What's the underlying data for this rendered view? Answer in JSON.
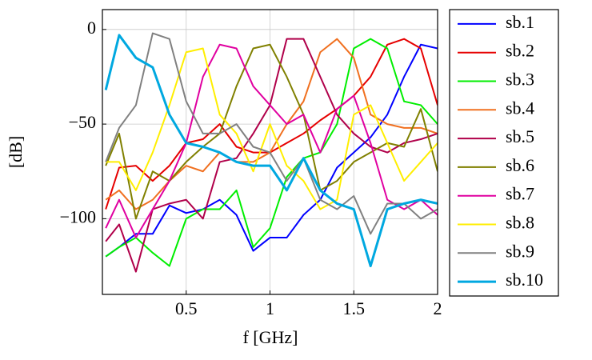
{
  "chart_data": {
    "type": "line",
    "xlabel": "f [GHz]",
    "ylabel": "[dB]",
    "x": [
      0.02,
      0.1,
      0.2,
      0.3,
      0.4,
      0.5,
      0.6,
      0.7,
      0.8,
      0.9,
      1.0,
      1.1,
      1.2,
      1.3,
      1.4,
      1.5,
      1.6,
      1.7,
      1.8,
      1.9,
      2.0
    ],
    "xlim": [
      0,
      2
    ],
    "xticks": [
      0.5,
      1,
      1.5,
      2
    ],
    "ylim": [
      -140,
      10.5
    ],
    "yticks": [
      {
        "value": -100,
        "label": "−100"
      },
      {
        "value": -50,
        "label": "−50"
      },
      0
    ],
    "grid": true,
    "legend": "outside right",
    "series": [
      {
        "name": "sb.1",
        "color": "#0000ff",
        "values": [
          -120,
          -115,
          -108,
          -108,
          -93,
          -97,
          -95,
          -90,
          -98,
          -117,
          -110,
          -110,
          -98,
          -90,
          -73,
          -65,
          -57,
          -45,
          -25,
          -8,
          -10
        ]
      },
      {
        "name": "sb.2",
        "color": "#e60000",
        "values": [
          -95,
          -73,
          -72,
          -80,
          -72,
          -60,
          -58,
          -50,
          -62,
          -65,
          -65,
          -60,
          -55,
          -48,
          -42,
          -35,
          -25,
          -8,
          -5,
          -10,
          -40
        ]
      },
      {
        "name": "sb.3",
        "color": "#00ee00",
        "values": [
          -120,
          -115,
          -110,
          -118,
          -125,
          -100,
          -95,
          -95,
          -85,
          -115,
          -105,
          -78,
          -68,
          -65,
          -50,
          -10,
          -5,
          -10,
          -38,
          -40,
          -50
        ]
      },
      {
        "name": "sb.4",
        "color": "#f07020",
        "values": [
          -90,
          -85,
          -95,
          -90,
          -80,
          -72,
          -75,
          -65,
          -70,
          -70,
          -65,
          -50,
          -38,
          -12,
          -5,
          -15,
          -45,
          -50,
          -52,
          -52,
          -55
        ]
      },
      {
        "name": "sb.5",
        "color": "#b0004a",
        "values": [
          -112,
          -103,
          -128,
          -95,
          -92,
          -90,
          -100,
          -70,
          -68,
          -55,
          -40,
          -5,
          -5,
          -25,
          -45,
          -55,
          -62,
          -65,
          -60,
          -58,
          -55
        ]
      },
      {
        "name": "sb.6",
        "color": "#808000",
        "values": [
          -72,
          -55,
          -100,
          -75,
          -80,
          -70,
          -62,
          -55,
          -30,
          -10,
          -8,
          -25,
          -45,
          -85,
          -80,
          -70,
          -65,
          -60,
          -62,
          -42,
          -75
        ]
      },
      {
        "name": "sb.7",
        "color": "#e000a0",
        "values": [
          -105,
          -90,
          -110,
          -95,
          -80,
          -60,
          -25,
          -8,
          -10,
          -30,
          -40,
          -50,
          -45,
          -65,
          -42,
          -35,
          -60,
          -90,
          -95,
          -90,
          -98
        ]
      },
      {
        "name": "sb.8",
        "color": "#ffee00",
        "values": [
          -70,
          -70,
          -85,
          -65,
          -40,
          -12,
          -10,
          -45,
          -55,
          -75,
          -50,
          -72,
          -80,
          -95,
          -90,
          -45,
          -40,
          -60,
          -80,
          -70,
          -60
        ]
      },
      {
        "name": "sb.9",
        "color": "#808080",
        "values": [
          -70,
          -52,
          -40,
          -2,
          -5,
          -38,
          -55,
          -55,
          -50,
          -62,
          -65,
          -80,
          -68,
          -90,
          -95,
          -88,
          -108,
          -92,
          -92,
          -100,
          -95
        ]
      },
      {
        "name": "sb.10",
        "color": "#00a8e0",
        "width": 3,
        "values": [
          -32,
          -3,
          -15,
          -20,
          -45,
          -60,
          -62,
          -65,
          -70,
          -72,
          -72,
          -85,
          -68,
          -85,
          -92,
          -95,
          -125,
          -95,
          -92,
          -90,
          -92
        ]
      }
    ]
  }
}
